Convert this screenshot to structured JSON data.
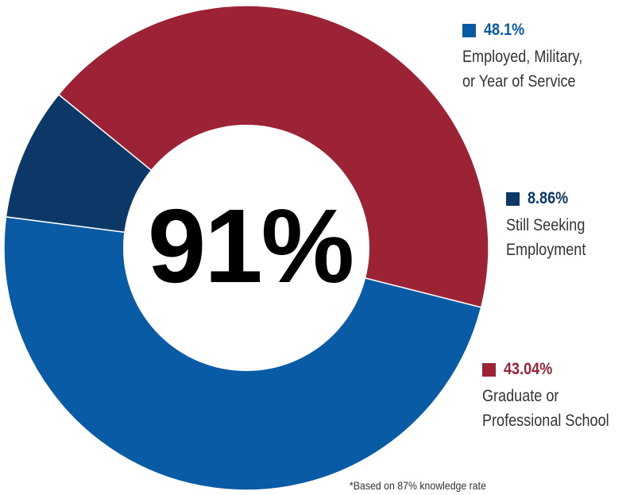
{
  "chart_data": {
    "type": "pie",
    "title": "",
    "center_label": "91%",
    "slices": [
      {
        "value_label": "48.1%",
        "value": 48.1,
        "label_lines": [
          "Employed, Military,",
          "or Year of Service"
        ],
        "color": "#0a5ba6"
      },
      {
        "value_label": "8.86%",
        "value": 8.86,
        "label_lines": [
          "Still Seeking",
          "Employment"
        ],
        "color": "#0b3866"
      },
      {
        "value_label": "43.04%",
        "value": 43.04,
        "label_lines": [
          "Graduate or",
          "Professional School"
        ],
        "color": "#9b2335"
      }
    ],
    "footnote": "*Based on 87% knowledge rate"
  }
}
